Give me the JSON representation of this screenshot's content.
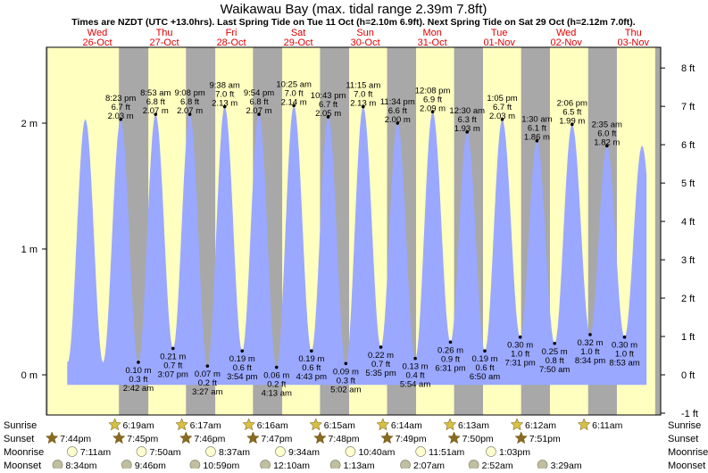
{
  "header": {
    "title": "Waikawau Bay (max. tidal range 2.39m 7.8ft)",
    "subtitle": "Times are NZDT (UTC +13.0hrs). Last Spring Tide on Tue 11 Oct (h=2.10m 6.9ft). Next Spring Tide on Sat 29 Oct (h=2.12m 7.0ft)."
  },
  "colors": {
    "day": "#ffffc0",
    "night": "#a8a8a8",
    "water": "#9aa8ff",
    "day_label": "#e00000",
    "text": "#000000",
    "sun_marker": "#d8c040",
    "sunset_marker": "#8a6a20",
    "moon_marker": "#ffffd0",
    "moonset_marker": "#c0c0a0"
  },
  "chart_data": {
    "type": "area",
    "x_unit": "day (0 = Wed 26-Oct 00:00 NZDT)",
    "y_unit": "m",
    "ylim": [
      -0.1,
      2.5
    ],
    "xlim": [
      -0.76,
      8.41
    ],
    "series_start": -0.45,
    "series_end": 8.2,
    "left_axis": {
      "ticks": [
        0,
        1,
        2
      ],
      "labels": [
        "0 m",
        "1 m",
        "2 m"
      ]
    },
    "right_axis": {
      "ticks": [
        -1,
        0,
        1,
        2,
        3,
        4,
        5,
        6,
        7,
        8
      ],
      "labels": [
        "-1 ft",
        "0 ft",
        "1 ft",
        "2 ft",
        "3 ft",
        "4 ft",
        "5 ft",
        "6 ft",
        "7 ft",
        "8 ft"
      ]
    },
    "days": [
      {
        "dow": "Wed",
        "date": "26-Oct",
        "x": 0.0
      },
      {
        "dow": "Thu",
        "date": "27-Oct",
        "x": 1.0
      },
      {
        "dow": "Fri",
        "date": "28-Oct",
        "x": 2.0
      },
      {
        "dow": "Sat",
        "date": "29-Oct",
        "x": 3.0
      },
      {
        "dow": "Sun",
        "date": "30-Oct",
        "x": 4.0
      },
      {
        "dow": "Mon",
        "date": "31-Oct",
        "x": 5.0
      },
      {
        "dow": "Tue",
        "date": "01-Nov",
        "x": 6.0
      },
      {
        "dow": "Wed",
        "date": "02-Nov",
        "x": 7.0
      },
      {
        "dow": "Thu",
        "date": "03-Nov",
        "x": 8.0
      }
    ],
    "nights": [
      [
        -0.76,
        -0.7403
      ],
      [
        0.3222,
        0.7611
      ],
      [
        1.3229,
        1.7604
      ],
      [
        2.3236,
        2.7597
      ],
      [
        3.3243,
        3.759
      ],
      [
        4.325,
        4.7583
      ],
      [
        5.3257,
        5.7576
      ],
      [
        6.3264,
        6.7569
      ],
      [
        7.3271,
        7.7563
      ],
      [
        8.3278,
        8.41
      ]
    ],
    "tides": [
      {
        "x": 0.3486,
        "m": 2.03,
        "time": "8:23 pm",
        "ft": "6.7 ft",
        "mlabel": "2.03 m",
        "type": "high"
      },
      {
        "x": 0.6125,
        "m": 0.1,
        "time": "2:42 am",
        "ft": "0.3 ft",
        "mlabel": "0.10 m",
        "type": "low"
      },
      {
        "x": 0.8701,
        "m": 2.07,
        "time": "8:53 am",
        "ft": "6.8 ft",
        "mlabel": "2.07 m",
        "type": "high"
      },
      {
        "x": 1.1299,
        "m": 0.21,
        "time": "3:07 pm",
        "ft": "0.7 ft",
        "mlabel": "0.21 m",
        "type": "low"
      },
      {
        "x": 1.3806,
        "m": 2.07,
        "time": "9:08 pm",
        "ft": "6.8 ft",
        "mlabel": "2.07 m",
        "type": "high"
      },
      {
        "x": 1.6438,
        "m": 0.07,
        "time": "3:27 am",
        "ft": "0.2 ft",
        "mlabel": "0.07 m",
        "type": "low"
      },
      {
        "x": 1.9014,
        "m": 2.13,
        "time": "9:38 am",
        "ft": "7.0 ft",
        "mlabel": "2.13 m",
        "type": "high"
      },
      {
        "x": 2.1625,
        "m": 0.19,
        "time": "3:54 pm",
        "ft": "0.6 ft",
        "mlabel": "0.19 m",
        "type": "low"
      },
      {
        "x": 2.4125,
        "m": 2.07,
        "time": "9:54 pm",
        "ft": "6.8 ft",
        "mlabel": "2.07 m",
        "type": "high"
      },
      {
        "x": 2.6757,
        "m": 0.06,
        "time": "4:13 am",
        "ft": "0.2 ft",
        "mlabel": "0.06 m",
        "type": "low"
      },
      {
        "x": 2.934,
        "m": 2.14,
        "time": "10:25 am",
        "ft": "7.0 ft",
        "mlabel": "2.14 m",
        "type": "high"
      },
      {
        "x": 3.1965,
        "m": 0.19,
        "time": "4:43 pm",
        "ft": "0.6 ft",
        "mlabel": "0.19 m",
        "type": "low"
      },
      {
        "x": 3.4465,
        "m": 2.05,
        "time": "10:43 pm",
        "ft": "6.7 ft",
        "mlabel": "2.05 m",
        "type": "high"
      },
      {
        "x": 3.7097,
        "m": 0.09,
        "time": "5:02 am",
        "ft": "0.3 ft",
        "mlabel": "0.09 m",
        "type": "low"
      },
      {
        "x": 3.9688,
        "m": 2.13,
        "time": "11:15 am",
        "ft": "7.0 ft",
        "mlabel": "2.13 m",
        "type": "high"
      },
      {
        "x": 4.2326,
        "m": 0.22,
        "time": "5:35 pm",
        "ft": "0.7 ft",
        "mlabel": "0.22 m",
        "type": "low"
      },
      {
        "x": 4.4819,
        "m": 2.0,
        "time": "11:34 pm",
        "ft": "6.6 ft",
        "mlabel": "2.00 m",
        "type": "high"
      },
      {
        "x": 4.7458,
        "m": 0.13,
        "time": "5:54 am",
        "ft": "0.4 ft",
        "mlabel": "0.13 m",
        "type": "low"
      },
      {
        "x": 5.0056,
        "m": 2.09,
        "time": "12:08 pm",
        "ft": "6.9 ft",
        "mlabel": "2.09 m",
        "type": "high"
      },
      {
        "x": 5.2715,
        "m": 0.26,
        "time": "6:31 pm",
        "ft": "0.9 ft",
        "mlabel": "0.26 m",
        "type": "low"
      },
      {
        "x": 5.5208,
        "m": 1.93,
        "time": "12:30 am",
        "ft": "6.3 ft",
        "mlabel": "1.93 m",
        "type": "high"
      },
      {
        "x": 5.7847,
        "m": 0.19,
        "time": "6:50 am",
        "ft": "0.6 ft",
        "mlabel": "0.19 m",
        "type": "low"
      },
      {
        "x": 6.0451,
        "m": 2.03,
        "time": "1:05 pm",
        "ft": "6.7 ft",
        "mlabel": "2.03 m",
        "type": "high"
      },
      {
        "x": 6.3132,
        "m": 0.3,
        "time": "7:31 pm",
        "ft": "1.0 ft",
        "mlabel": "0.30 m",
        "type": "low"
      },
      {
        "x": 6.5625,
        "m": 1.86,
        "time": "1:30 am",
        "ft": "6.1 ft",
        "mlabel": "1.86 m",
        "type": "high"
      },
      {
        "x": 6.8264,
        "m": 0.25,
        "time": "7:50 am",
        "ft": "0.8 ft",
        "mlabel": "0.25 m",
        "type": "low"
      },
      {
        "x": 7.0875,
        "m": 1.99,
        "time": "2:06 pm",
        "ft": "6.5 ft",
        "mlabel": "1.99 m",
        "type": "high"
      },
      {
        "x": 7.3569,
        "m": 0.32,
        "time": "8:34 pm",
        "ft": "1.0 ft",
        "mlabel": "0.32 m",
        "type": "low"
      },
      {
        "x": 7.6076,
        "m": 1.82,
        "time": "2:35 am",
        "ft": "6.0 ft",
        "mlabel": "1.82 m",
        "type": "high"
      },
      {
        "x": 7.8701,
        "m": 0.3,
        "time": "8:53 am",
        "ft": "1.0 ft",
        "mlabel": "0.30 m",
        "type": "low"
      }
    ],
    "bottom_rows": [
      {
        "label": "Sunrise",
        "kind": "sunrise",
        "items": [
          {
            "x": 0.2604,
            "text": "6:19am"
          },
          {
            "x": 1.2611,
            "text": "6:17am"
          },
          {
            "x": 2.2618,
            "text": "6:16am"
          },
          {
            "x": 3.2625,
            "text": "6:15am"
          },
          {
            "x": 4.2632,
            "text": "6:14am"
          },
          {
            "x": 5.2639,
            "text": "6:13am"
          },
          {
            "x": 6.2646,
            "text": "6:12am"
          },
          {
            "x": 7.2653,
            "text": "6:11am"
          }
        ]
      },
      {
        "label": "Sunset",
        "kind": "sunset",
        "items": [
          {
            "x": -0.6778,
            "text": "7:44pm"
          },
          {
            "x": 0.3229,
            "text": "7:45pm"
          },
          {
            "x": 1.3236,
            "text": "7:46pm"
          },
          {
            "x": 2.3243,
            "text": "7:47pm"
          },
          {
            "x": 3.325,
            "text": "7:48pm"
          },
          {
            "x": 4.3257,
            "text": "7:49pm"
          },
          {
            "x": 5.3264,
            "text": "7:50pm"
          },
          {
            "x": 6.3271,
            "text": "7:51pm"
          }
        ]
      },
      {
        "label": "Moonrise",
        "kind": "moonrise",
        "items": [
          {
            "x": -0.3757,
            "text": "7:11am"
          },
          {
            "x": 0.6597,
            "text": "7:50am"
          },
          {
            "x": 1.6924,
            "text": "8:37am"
          },
          {
            "x": 2.7313,
            "text": "9:34am"
          },
          {
            "x": 3.7778,
            "text": "10:40am"
          },
          {
            "x": 4.8271,
            "text": "11:51am"
          },
          {
            "x": 5.8771,
            "text": "1:03pm"
          }
        ]
      },
      {
        "label": "Moonset",
        "kind": "moonset",
        "items": [
          {
            "x": -0.5931,
            "text": "8:34pm"
          },
          {
            "x": 0.4375,
            "text": "9:46pm"
          },
          {
            "x": 1.4576,
            "text": "10:59pm"
          },
          {
            "x": 2.5069,
            "text": "12:10am"
          },
          {
            "x": 3.5535,
            "text": "1:13am"
          },
          {
            "x": 4.5986,
            "text": "2:07am"
          },
          {
            "x": 5.6194,
            "text": "2:52am"
          },
          {
            "x": 6.6451,
            "text": "3:29am"
          }
        ]
      }
    ]
  }
}
